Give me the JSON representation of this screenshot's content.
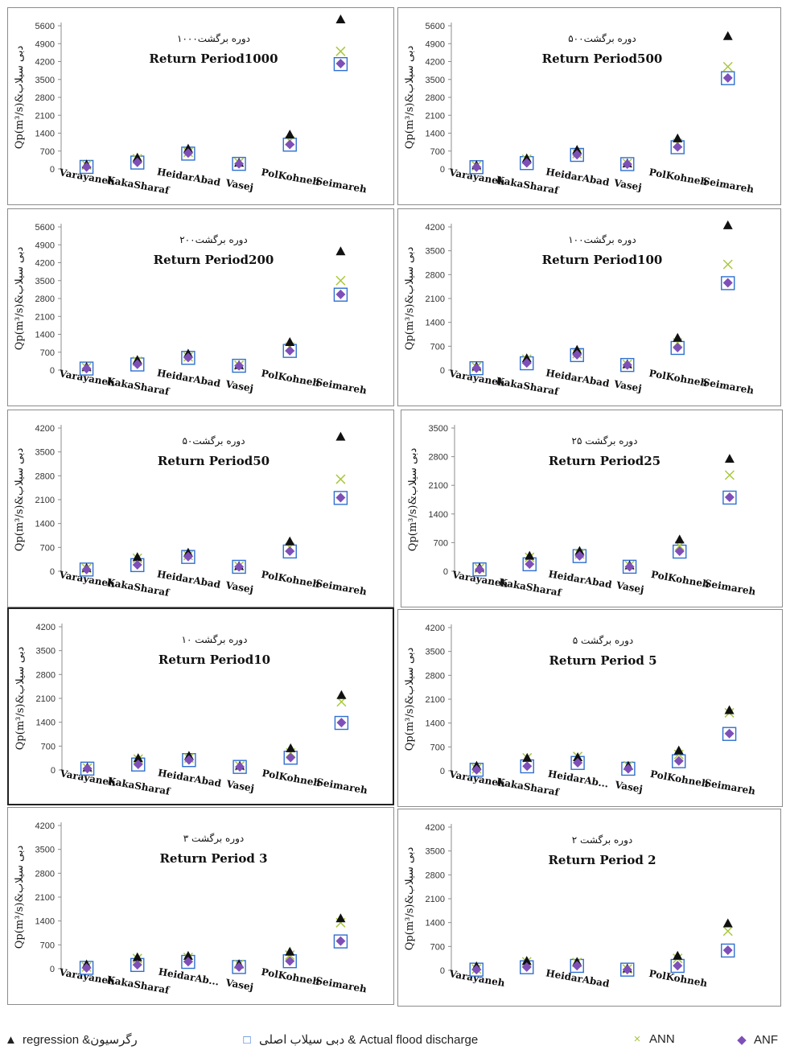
{
  "colors": {
    "regression": "#111111",
    "actual": "#2f6fd0",
    "ann": "#a8c83c",
    "anfis": "#7f4fb8",
    "axis": "#8c8c8c",
    "text": "#111111"
  },
  "legend": {
    "regression": "regression &رگرسیون",
    "actual": "دبی سیلاب اصلی & Actual flood discharge",
    "ann": "ANN",
    "anfis": "ANF"
  },
  "chart_data": [
    {
      "type": "scatter",
      "title_fa": "دوره برگشت۱۰۰۰",
      "title": "Return Period1000",
      "ylabel": "Qp(m³/s)&دبی سیلاب",
      "ylim": [
        0,
        5600
      ],
      "yticks": [
        0,
        700,
        1400,
        2100,
        2800,
        3500,
        4200,
        4900,
        5600
      ],
      "categories": [
        "Varayaneh",
        "KakaSharaf",
        "HeidarAbad",
        "Vasej",
        "PolKohneh",
        "Seimareh"
      ],
      "series": [
        {
          "name": "regression &رگرسیون",
          "values": [
            180,
            450,
            800,
            250,
            1350,
            5850
          ]
        },
        {
          "name": "دبی سیلاب اصلی & Actual flood discharge",
          "values": [
            80,
            250,
            600,
            200,
            950,
            4100
          ]
        },
        {
          "name": "ANN",
          "values": [
            150,
            400,
            650,
            250,
            1100,
            4600
          ]
        },
        {
          "name": "ANF",
          "values": [
            80,
            260,
            620,
            200,
            960,
            4120
          ]
        }
      ]
    },
    {
      "type": "scatter",
      "title_fa": "دوره برگشت۵۰۰",
      "title": "Return Period500",
      "ylabel": "Qp(m³/s)&دبی سیلاب",
      "ylim": [
        0,
        5600
      ],
      "yticks": [
        0,
        700,
        1400,
        2100,
        2800,
        3500,
        4200,
        4900,
        5600
      ],
      "categories": [
        "Varayaneh",
        "KakaSharaf",
        "HeidarAbad",
        "Vasej",
        "PolKohneh",
        "Seimareh"
      ],
      "series": [
        {
          "name": "regression &رگرسیون",
          "values": [
            150,
            420,
            750,
            230,
            1200,
            5200
          ]
        },
        {
          "name": "دبی سیلاب اصلی & Actual flood discharge",
          "values": [
            70,
            230,
            550,
            190,
            850,
            3550
          ]
        },
        {
          "name": "ANN",
          "values": [
            120,
            380,
            600,
            220,
            1000,
            4000
          ]
        },
        {
          "name": "ANF",
          "values": [
            70,
            240,
            560,
            190,
            860,
            3560
          ]
        }
      ]
    },
    {
      "type": "scatter",
      "title_fa": "دوره برگشت۲۰۰",
      "title": "Return Period200",
      "ylabel": "Qp(m³/s)&دبی سیلاب",
      "ylim": [
        0,
        5600
      ],
      "yticks": [
        0,
        700,
        1400,
        2100,
        2800,
        3500,
        4200,
        4900,
        5600
      ],
      "categories": [
        "Varayaneh",
        "KakaSharaf",
        "HeidarAbad",
        "Vasej",
        "PolKohneh",
        "Seimareh"
      ],
      "series": [
        {
          "name": "regression &رگرسیون",
          "values": [
            130,
            400,
            650,
            200,
            1100,
            4650
          ]
        },
        {
          "name": "دبی سیلاب اصلی & Actual flood discharge",
          "values": [
            60,
            220,
            480,
            170,
            750,
            2950
          ]
        },
        {
          "name": "ANN",
          "values": [
            100,
            350,
            520,
            190,
            900,
            3500
          ]
        },
        {
          "name": "ANF",
          "values": [
            60,
            230,
            490,
            170,
            760,
            2960
          ]
        }
      ]
    },
    {
      "type": "scatter",
      "title_fa": "دوره برگشت۱۰۰",
      "title": "Return Period100",
      "ylabel": "Qp(m³/s)&دبی سیلاب",
      "ylim": [
        0,
        4200
      ],
      "yticks": [
        0,
        700,
        1400,
        2100,
        2800,
        3500,
        4200
      ],
      "categories": [
        "Varayaneh",
        "KakaSharaf",
        "HeidarAbad",
        "Vasej",
        "PolKohneh",
        "Seimareh"
      ],
      "series": [
        {
          "name": "regression &رگرسیون",
          "values": [
            110,
            350,
            600,
            180,
            950,
            4250
          ]
        },
        {
          "name": "دبی سیلاب اصلی & Actual flood discharge",
          "values": [
            55,
            200,
            440,
            150,
            650,
            2550
          ]
        },
        {
          "name": "ANN",
          "values": [
            90,
            320,
            480,
            170,
            800,
            3100
          ]
        },
        {
          "name": "ANF",
          "values": [
            55,
            210,
            450,
            150,
            660,
            2560
          ]
        }
      ]
    },
    {
      "type": "scatter",
      "title_fa": "دوره برگشت۵۰",
      "title": "Return Period50",
      "ylabel": "Qp(m³/s)&دبی سیلاب",
      "ylim": [
        0,
        4200
      ],
      "yticks": [
        0,
        700,
        1400,
        2100,
        2800,
        3500,
        4200
      ],
      "categories": [
        "Varayaneh",
        "KakaSharaf",
        "HeidarAbad",
        "Vasej",
        "PolKohneh",
        "Seimareh"
      ],
      "series": [
        {
          "name": "regression &رگرسیون",
          "values": [
            100,
            420,
            550,
            160,
            880,
            3950
          ]
        },
        {
          "name": "دبی سیلاب اصلی & Actual flood discharge",
          "values": [
            50,
            180,
            420,
            130,
            580,
            2150
          ]
        },
        {
          "name": "ANN",
          "values": [
            80,
            380,
            460,
            150,
            700,
            2700
          ]
        },
        {
          "name": "ANF",
          "values": [
            50,
            190,
            430,
            130,
            590,
            2160
          ]
        }
      ]
    },
    {
      "type": "scatter",
      "title_fa": "دوره برگشت ۲۵",
      "title": "Return Period25",
      "ylabel": "Qp(m³/s)&دبی سیلاب",
      "ylim": [
        0,
        3500
      ],
      "yticks": [
        0,
        700,
        1400,
        2100,
        2800,
        3500
      ],
      "categories": [
        "Varayaneh",
        "KakaSharaf",
        "HeidarAbad",
        "Vasej",
        "PolKohneh",
        "Seimareh"
      ],
      "series": [
        {
          "name": "regression &رگرسیون",
          "values": [
            90,
            380,
            500,
            150,
            780,
            2750
          ]
        },
        {
          "name": "دبی سیلاب اصلی & Actual flood discharge",
          "values": [
            45,
            170,
            370,
            110,
            480,
            1800
          ]
        },
        {
          "name": "ANN",
          "values": [
            70,
            340,
            420,
            140,
            620,
            2350
          ]
        },
        {
          "name": "ANF",
          "values": [
            45,
            175,
            375,
            110,
            490,
            1810
          ]
        }
      ]
    },
    {
      "type": "scatter",
      "title_fa": "دوره برگشت ۱۰",
      "title": "Return Period10",
      "ylabel": "Qp(m³/s)&دبی سیلاب",
      "ylim": [
        0,
        4200
      ],
      "yticks": [
        0,
        700,
        1400,
        2100,
        2800,
        3500,
        4200
      ],
      "categories": [
        "Varayaneh",
        "KakaSharaf",
        "HeidarAbad",
        "Vasej",
        "PolKohneh",
        "Seimareh"
      ],
      "series": [
        {
          "name": "regression &رگرسیون",
          "values": [
            80,
            350,
            420,
            130,
            640,
            2200
          ]
        },
        {
          "name": "دبی سیلاب اصلی & Actual flood discharge",
          "values": [
            40,
            160,
            290,
            90,
            360,
            1380
          ]
        },
        {
          "name": "ANN",
          "values": [
            60,
            320,
            350,
            120,
            500,
            2000
          ]
        },
        {
          "name": "ANF",
          "values": [
            40,
            165,
            295,
            90,
            365,
            1390
          ]
        }
      ]
    },
    {
      "type": "scatter",
      "title_fa": "دوره برگشت ۵",
      "title": "Return Period 5",
      "ylabel": "Qp(m³/s)&دبی سیلاب",
      "ylim": [
        0,
        4200
      ],
      "yticks": [
        0,
        700,
        1400,
        2100,
        2800,
        3500,
        4200
      ],
      "categories": [
        "Varayaneh",
        "KakaSharaf",
        "HeidarAb...",
        "Vasej",
        "PolKohneh",
        "Seimareh"
      ],
      "series": [
        {
          "name": "regression &رگرسیون",
          "values": [
            150,
            380,
            400,
            150,
            600,
            1780
          ]
        },
        {
          "name": "دبی سیلاب اصلی & Actual flood discharge",
          "values": [
            30,
            130,
            230,
            60,
            280,
            1080
          ]
        },
        {
          "name": "ANN",
          "values": [
            60,
            380,
            420,
            150,
            480,
            1700
          ]
        },
        {
          "name": "ANF",
          "values": [
            30,
            135,
            235,
            60,
            290,
            1090
          ]
        }
      ]
    },
    {
      "type": "scatter",
      "title_fa": "دوره برگشت ۳",
      "title": "Return Period 3",
      "ylabel": "Qp(m³/s)&دبی سیلاب",
      "ylim": [
        0,
        4200
      ],
      "yticks": [
        0,
        700,
        1400,
        2100,
        2800,
        3500,
        4200
      ],
      "categories": [
        "Varayaneh",
        "KakaSharaf",
        "HeidarAb...",
        "Vasej",
        "PolKohneh",
        "Seimareh"
      ],
      "series": [
        {
          "name": "regression &رگرسیون",
          "values": [
            130,
            340,
            380,
            140,
            500,
            1480
          ]
        },
        {
          "name": "دبی سیلاب اصلی & Actual flood discharge",
          "values": [
            25,
            110,
            200,
            50,
            220,
            800
          ]
        },
        {
          "name": "ANN",
          "values": [
            50,
            300,
            330,
            130,
            400,
            1350
          ]
        },
        {
          "name": "ANF",
          "values": [
            25,
            115,
            205,
            50,
            225,
            810
          ]
        }
      ]
    },
    {
      "type": "scatter",
      "title_fa": "دوره برگشت ۲",
      "title": "Return Period 2",
      "ylabel": "Qp(m³/s)&دبی سیلاب",
      "ylim": [
        0,
        4200
      ],
      "yticks": [
        0,
        700,
        1400,
        2100,
        2800,
        3500,
        4200
      ],
      "categories": [
        "Varayaneh",
        "",
        "HeidarAbad",
        "",
        "PolKohneh",
        ""
      ],
      "series": [
        {
          "name": "regression &رگرسیون",
          "values": [
            120,
            280,
            250,
            60,
            430,
            1380
          ]
        },
        {
          "name": "دبی سیلاب اصلی & Actual flood discharge",
          "values": [
            20,
            90,
            130,
            20,
            130,
            580
          ]
        },
        {
          "name": "ANN",
          "values": [
            40,
            250,
            230,
            40,
            350,
            1150
          ]
        },
        {
          "name": "ANF",
          "values": [
            20,
            95,
            135,
            20,
            135,
            590
          ]
        }
      ]
    }
  ]
}
